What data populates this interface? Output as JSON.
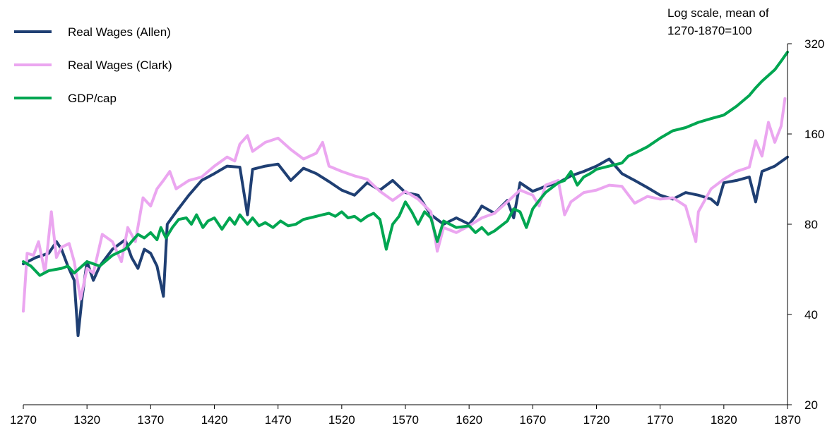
{
  "chart_data": {
    "type": "line",
    "scale": "log",
    "note_lines": [
      "Log scale, mean of",
      "1270-1870=100"
    ],
    "xlim": [
      1270,
      1870
    ],
    "ylim": [
      20,
      320
    ],
    "x_ticks": [
      1270,
      1320,
      1370,
      1420,
      1470,
      1520,
      1570,
      1620,
      1670,
      1720,
      1770,
      1820,
      1870
    ],
    "y_ticks": [
      20,
      40,
      80,
      160,
      320
    ],
    "grid": false,
    "legend_position": "top-left",
    "series": [
      {
        "name": "Real Wages (Allen)",
        "color": "#1f3f73",
        "points": [
          [
            1270,
            59
          ],
          [
            1280,
            62
          ],
          [
            1290,
            64
          ],
          [
            1296,
            70
          ],
          [
            1300,
            66
          ],
          [
            1305,
            58
          ],
          [
            1310,
            52
          ],
          [
            1313,
            34
          ],
          [
            1316,
            45
          ],
          [
            1320,
            60
          ],
          [
            1325,
            52
          ],
          [
            1330,
            58
          ],
          [
            1340,
            66
          ],
          [
            1350,
            71
          ],
          [
            1355,
            62
          ],
          [
            1360,
            57
          ],
          [
            1365,
            66
          ],
          [
            1370,
            64
          ],
          [
            1375,
            58
          ],
          [
            1380,
            46
          ],
          [
            1383,
            80
          ],
          [
            1390,
            88
          ],
          [
            1400,
            100
          ],
          [
            1410,
            112
          ],
          [
            1420,
            118
          ],
          [
            1430,
            125
          ],
          [
            1440,
            124
          ],
          [
            1446,
            86
          ],
          [
            1450,
            122
          ],
          [
            1460,
            125
          ],
          [
            1470,
            127
          ],
          [
            1480,
            112
          ],
          [
            1490,
            123
          ],
          [
            1500,
            118
          ],
          [
            1510,
            111
          ],
          [
            1520,
            104
          ],
          [
            1530,
            100
          ],
          [
            1540,
            110
          ],
          [
            1550,
            104
          ],
          [
            1560,
            112
          ],
          [
            1570,
            102
          ],
          [
            1580,
            100
          ],
          [
            1590,
            86
          ],
          [
            1600,
            80
          ],
          [
            1610,
            84
          ],
          [
            1620,
            80
          ],
          [
            1625,
            85
          ],
          [
            1630,
            92
          ],
          [
            1640,
            87
          ],
          [
            1650,
            96
          ],
          [
            1655,
            84
          ],
          [
            1660,
            110
          ],
          [
            1670,
            103
          ],
          [
            1680,
            107
          ],
          [
            1690,
            110
          ],
          [
            1700,
            116
          ],
          [
            1710,
            120
          ],
          [
            1720,
            125
          ],
          [
            1730,
            132
          ],
          [
            1740,
            118
          ],
          [
            1750,
            112
          ],
          [
            1760,
            106
          ],
          [
            1770,
            100
          ],
          [
            1780,
            97
          ],
          [
            1790,
            102
          ],
          [
            1800,
            100
          ],
          [
            1810,
            97
          ],
          [
            1815,
            93
          ],
          [
            1820,
            110
          ],
          [
            1830,
            112
          ],
          [
            1840,
            115
          ],
          [
            1845,
            95
          ],
          [
            1850,
            120
          ],
          [
            1860,
            125
          ],
          [
            1870,
            134
          ]
        ]
      },
      {
        "name": "Real Wages (Clark)",
        "color": "#eba6f0",
        "points": [
          [
            1270,
            41
          ],
          [
            1273,
            64
          ],
          [
            1278,
            63
          ],
          [
            1282,
            70
          ],
          [
            1287,
            55
          ],
          [
            1292,
            88
          ],
          [
            1296,
            62
          ],
          [
            1300,
            67
          ],
          [
            1306,
            69
          ],
          [
            1310,
            60
          ],
          [
            1315,
            45
          ],
          [
            1320,
            57
          ],
          [
            1325,
            55
          ],
          [
            1332,
            74
          ],
          [
            1340,
            70
          ],
          [
            1347,
            60
          ],
          [
            1352,
            78
          ],
          [
            1358,
            70
          ],
          [
            1364,
            98
          ],
          [
            1370,
            92
          ],
          [
            1375,
            105
          ],
          [
            1380,
            112
          ],
          [
            1385,
            120
          ],
          [
            1390,
            105
          ],
          [
            1400,
            112
          ],
          [
            1410,
            115
          ],
          [
            1420,
            125
          ],
          [
            1430,
            134
          ],
          [
            1436,
            130
          ],
          [
            1440,
            148
          ],
          [
            1446,
            158
          ],
          [
            1450,
            140
          ],
          [
            1460,
            150
          ],
          [
            1470,
            155
          ],
          [
            1480,
            142
          ],
          [
            1490,
            132
          ],
          [
            1500,
            138
          ],
          [
            1505,
            150
          ],
          [
            1510,
            125
          ],
          [
            1520,
            120
          ],
          [
            1530,
            116
          ],
          [
            1540,
            113
          ],
          [
            1550,
            103
          ],
          [
            1560,
            96
          ],
          [
            1570,
            103
          ],
          [
            1580,
            97
          ],
          [
            1590,
            88
          ],
          [
            1595,
            65
          ],
          [
            1600,
            78
          ],
          [
            1610,
            75
          ],
          [
            1620,
            79
          ],
          [
            1630,
            84
          ],
          [
            1640,
            87
          ],
          [
            1650,
            95
          ],
          [
            1660,
            104
          ],
          [
            1670,
            100
          ],
          [
            1675,
            92
          ],
          [
            1680,
            108
          ],
          [
            1690,
            112
          ],
          [
            1695,
            86
          ],
          [
            1700,
            95
          ],
          [
            1710,
            102
          ],
          [
            1720,
            104
          ],
          [
            1730,
            108
          ],
          [
            1740,
            107
          ],
          [
            1750,
            94
          ],
          [
            1760,
            99
          ],
          [
            1770,
            97
          ],
          [
            1780,
            98
          ],
          [
            1790,
            92
          ],
          [
            1798,
            70
          ],
          [
            1800,
            88
          ],
          [
            1810,
            105
          ],
          [
            1820,
            113
          ],
          [
            1830,
            120
          ],
          [
            1840,
            124
          ],
          [
            1845,
            152
          ],
          [
            1850,
            135
          ],
          [
            1855,
            175
          ],
          [
            1860,
            150
          ],
          [
            1865,
            170
          ],
          [
            1868,
            210
          ]
        ]
      },
      {
        "name": "GDP/cap",
        "color": "#00a651",
        "points": [
          [
            1270,
            60
          ],
          [
            1276,
            58
          ],
          [
            1283,
            54
          ],
          [
            1290,
            56
          ],
          [
            1300,
            57
          ],
          [
            1305,
            58
          ],
          [
            1310,
            55
          ],
          [
            1320,
            60
          ],
          [
            1330,
            58
          ],
          [
            1340,
            63
          ],
          [
            1350,
            66
          ],
          [
            1355,
            70
          ],
          [
            1360,
            74
          ],
          [
            1365,
            72
          ],
          [
            1370,
            75
          ],
          [
            1375,
            71
          ],
          [
            1378,
            78
          ],
          [
            1382,
            72
          ],
          [
            1387,
            78
          ],
          [
            1392,
            83
          ],
          [
            1398,
            84
          ],
          [
            1402,
            80
          ],
          [
            1406,
            86
          ],
          [
            1411,
            78
          ],
          [
            1415,
            82
          ],
          [
            1420,
            84
          ],
          [
            1426,
            77
          ],
          [
            1432,
            84
          ],
          [
            1436,
            80
          ],
          [
            1440,
            86
          ],
          [
            1446,
            80
          ],
          [
            1450,
            84
          ],
          [
            1455,
            79
          ],
          [
            1460,
            81
          ],
          [
            1466,
            78
          ],
          [
            1472,
            82
          ],
          [
            1478,
            79
          ],
          [
            1484,
            80
          ],
          [
            1490,
            83
          ],
          [
            1495,
            84
          ],
          [
            1500,
            85
          ],
          [
            1505,
            86
          ],
          [
            1510,
            87
          ],
          [
            1515,
            85
          ],
          [
            1520,
            88
          ],
          [
            1525,
            84
          ],
          [
            1530,
            85
          ],
          [
            1535,
            82
          ],
          [
            1540,
            85
          ],
          [
            1545,
            87
          ],
          [
            1550,
            83
          ],
          [
            1555,
            66
          ],
          [
            1560,
            80
          ],
          [
            1565,
            85
          ],
          [
            1570,
            95
          ],
          [
            1575,
            88
          ],
          [
            1580,
            80
          ],
          [
            1585,
            88
          ],
          [
            1590,
            84
          ],
          [
            1595,
            70
          ],
          [
            1600,
            82
          ],
          [
            1610,
            78
          ],
          [
            1620,
            79
          ],
          [
            1625,
            75
          ],
          [
            1630,
            78
          ],
          [
            1635,
            74
          ],
          [
            1640,
            76
          ],
          [
            1650,
            82
          ],
          [
            1655,
            90
          ],
          [
            1660,
            88
          ],
          [
            1665,
            78
          ],
          [
            1670,
            90
          ],
          [
            1675,
            96
          ],
          [
            1680,
            102
          ],
          [
            1690,
            110
          ],
          [
            1695,
            112
          ],
          [
            1700,
            120
          ],
          [
            1705,
            108
          ],
          [
            1710,
            115
          ],
          [
            1715,
            118
          ],
          [
            1720,
            122
          ],
          [
            1730,
            125
          ],
          [
            1740,
            128
          ],
          [
            1745,
            135
          ],
          [
            1750,
            138
          ],
          [
            1760,
            145
          ],
          [
            1770,
            155
          ],
          [
            1780,
            164
          ],
          [
            1790,
            168
          ],
          [
            1800,
            175
          ],
          [
            1810,
            180
          ],
          [
            1820,
            185
          ],
          [
            1830,
            198
          ],
          [
            1840,
            215
          ],
          [
            1845,
            228
          ],
          [
            1850,
            240
          ],
          [
            1860,
            262
          ],
          [
            1865,
            280
          ],
          [
            1870,
            300
          ]
        ]
      }
    ]
  }
}
